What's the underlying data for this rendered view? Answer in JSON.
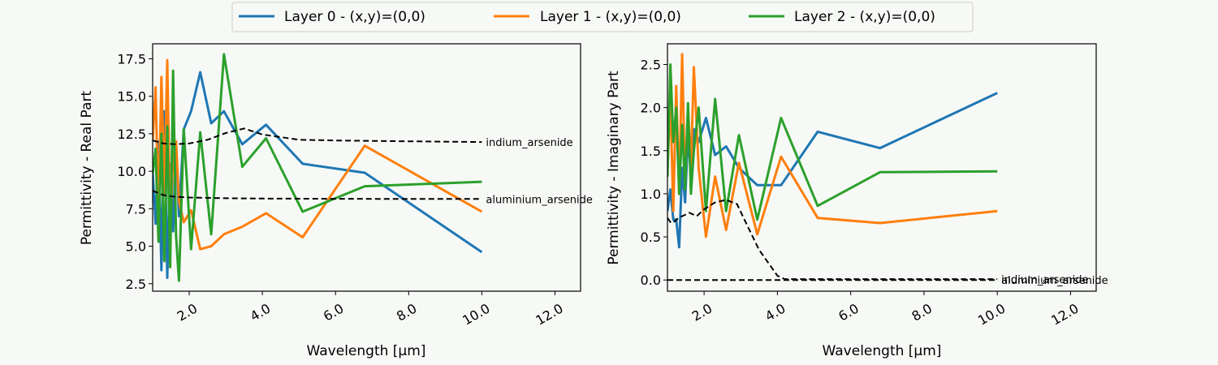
{
  "chart_data": [
    {
      "type": "line",
      "xlabel": "Wavelength [μm]",
      "ylabel": "Permittivity - Real Part",
      "xlim": [
        1.0,
        12.7
      ],
      "ylim": [
        2.0,
        18.5
      ],
      "xticks": [
        2,
        4,
        6,
        8,
        10,
        12
      ],
      "xtick_labels": [
        "2.0",
        "4.0",
        "6.0",
        "8.0",
        "10.0",
        "12.0"
      ],
      "yticks": [
        2.5,
        5.0,
        7.5,
        10.0,
        12.5,
        15.0,
        17.5
      ],
      "ytick_labels": [
        "2.5",
        "5.0",
        "7.5",
        "10.0",
        "12.5",
        "15.0",
        "17.5"
      ],
      "series": [
        {
          "name": "Layer 0 - (x,y)=(0,0)",
          "color": "#1f77b4",
          "x": [
            1.0,
            1.08,
            1.16,
            1.24,
            1.32,
            1.4,
            1.48,
            1.56,
            1.64,
            1.72,
            1.85,
            2.05,
            2.3,
            2.6,
            2.95,
            3.45,
            4.1,
            5.1,
            6.8,
            10.0
          ],
          "y": [
            10.0,
            6.5,
            12.0,
            3.4,
            14.0,
            2.9,
            10.5,
            6.0,
            12.0,
            7.0,
            12.8,
            14.0,
            16.6,
            13.2,
            14.0,
            11.8,
            13.1,
            10.5,
            9.9,
            4.6
          ]
        },
        {
          "name": "Layer 1 - (x,y)=(0,0)",
          "color": "#ff7f0e",
          "x": [
            1.0,
            1.08,
            1.16,
            1.24,
            1.32,
            1.4,
            1.48,
            1.56,
            1.64,
            1.72,
            1.85,
            2.05,
            2.3,
            2.6,
            2.95,
            3.45,
            4.1,
            5.1,
            6.8,
            10.0
          ],
          "y": [
            12.0,
            15.6,
            7.0,
            16.3,
            8.5,
            17.4,
            6.0,
            11.0,
            12.0,
            8.0,
            6.6,
            7.4,
            4.8,
            5.0,
            5.8,
            6.3,
            7.2,
            5.6,
            11.7,
            7.3
          ]
        },
        {
          "name": "Layer 2 - (x,y)=(0,0)",
          "color": "#2ca02c",
          "x": [
            1.0,
            1.08,
            1.16,
            1.24,
            1.32,
            1.4,
            1.48,
            1.56,
            1.64,
            1.72,
            1.85,
            2.05,
            2.3,
            2.6,
            2.95,
            3.45,
            4.1,
            5.1,
            6.8,
            10.0
          ],
          "y": [
            9.8,
            11.5,
            5.3,
            12.5,
            4.0,
            13.0,
            3.6,
            16.7,
            5.7,
            2.7,
            12.8,
            4.8,
            12.6,
            5.8,
            17.8,
            10.3,
            12.2,
            7.3,
            9.0,
            9.3
          ]
        }
      ],
      "reference_curves": [
        {
          "label": "indium_arsenide",
          "x": [
            1.0,
            1.3,
            1.6,
            2.0,
            2.5,
            3.0,
            3.5,
            4.0,
            5.0,
            6.0,
            8.0,
            10.0
          ],
          "y": [
            12.05,
            11.85,
            11.8,
            11.85,
            12.1,
            12.55,
            12.85,
            12.45,
            12.1,
            12.05,
            12.0,
            11.95
          ]
        },
        {
          "label": "aluminium_arsenide",
          "x": [
            1.0,
            1.3,
            1.6,
            2.0,
            3.0,
            4.0,
            6.0,
            8.0,
            10.0
          ],
          "y": [
            8.7,
            8.4,
            8.3,
            8.25,
            8.2,
            8.18,
            8.16,
            8.15,
            8.15
          ]
        }
      ]
    },
    {
      "type": "line",
      "xlabel": "Wavelength [μm]",
      "ylabel": "Permittivity - Imaginary Part",
      "xlim": [
        1.0,
        12.7
      ],
      "ylim": [
        -0.13,
        2.74
      ],
      "xticks": [
        2,
        4,
        6,
        8,
        10,
        12
      ],
      "xtick_labels": [
        "2.0",
        "4.0",
        "6.0",
        "8.0",
        "10.0",
        "12.0"
      ],
      "yticks": [
        0.0,
        0.5,
        1.0,
        1.5,
        2.0,
        2.5
      ],
      "ytick_labels": [
        "0.0",
        "0.5",
        "1.0",
        "1.5",
        "2.0",
        "2.5"
      ],
      "series": [
        {
          "name": "Layer 0 - (x,y)=(0,0)",
          "color": "#1f77b4",
          "x": [
            1.0,
            1.08,
            1.16,
            1.24,
            1.32,
            1.4,
            1.48,
            1.56,
            1.64,
            1.72,
            1.85,
            2.05,
            2.3,
            2.6,
            2.95,
            3.45,
            4.1,
            5.1,
            6.8,
            10.0
          ],
          "y": [
            0.8,
            1.05,
            0.7,
            0.7,
            0.38,
            1.3,
            0.9,
            1.7,
            1.2,
            1.75,
            1.6,
            1.88,
            1.45,
            1.55,
            1.3,
            1.1,
            1.1,
            1.72,
            1.53,
            2.17
          ]
        },
        {
          "name": "Layer 1 - (x,y)=(0,0)",
          "color": "#ff7f0e",
          "x": [
            1.0,
            1.08,
            1.16,
            1.24,
            1.32,
            1.4,
            1.48,
            1.56,
            1.64,
            1.72,
            1.85,
            2.05,
            2.3,
            2.6,
            2.95,
            3.45,
            4.1,
            5.1,
            6.8,
            10.0
          ],
          "y": [
            1.3,
            2.1,
            0.8,
            2.25,
            1.0,
            2.62,
            1.1,
            2.0,
            1.3,
            2.47,
            1.3,
            0.5,
            1.2,
            0.58,
            1.36,
            0.53,
            1.43,
            0.72,
            0.66,
            0.8
          ]
        },
        {
          "name": "Layer 2 - (x,y)=(0,0)",
          "color": "#2ca02c",
          "x": [
            1.0,
            1.08,
            1.16,
            1.24,
            1.32,
            1.4,
            1.48,
            1.56,
            1.64,
            1.72,
            1.85,
            2.05,
            2.3,
            2.6,
            2.95,
            3.45,
            4.1,
            5.1,
            6.8,
            10.0
          ],
          "y": [
            1.2,
            2.5,
            1.6,
            2.0,
            1.0,
            1.8,
            1.05,
            2.05,
            1.0,
            1.5,
            2.0,
            0.8,
            2.1,
            0.8,
            1.68,
            0.7,
            1.88,
            0.86,
            1.25,
            1.26
          ]
        }
      ],
      "reference_curves": [
        {
          "label": "indium_arsenide",
          "x": [
            1.0,
            1.1,
            1.2,
            1.3,
            1.6,
            1.8,
            2.0,
            2.3,
            2.6,
            2.9,
            3.1,
            3.5,
            4.0,
            4.2,
            6.0,
            8.0,
            10.0
          ],
          "y": [
            0.72,
            0.66,
            0.68,
            0.72,
            0.78,
            0.74,
            0.82,
            0.9,
            0.93,
            0.88,
            0.7,
            0.35,
            0.05,
            0.01,
            0.01,
            0.01,
            0.01
          ]
        },
        {
          "label": "aluminium_arsenide",
          "x": [
            1.0,
            2.0,
            4.0,
            6.0,
            8.0,
            10.0
          ],
          "y": [
            0.0,
            0.0,
            0.0,
            0.0,
            0.0,
            0.0
          ]
        }
      ]
    }
  ],
  "legend": {
    "position": "top-center",
    "entries": [
      {
        "label": "Layer 0 - (x,y)=(0,0)",
        "color": "#1f77b4"
      },
      {
        "label": "Layer 1 - (x,y)=(0,0)",
        "color": "#ff7f0e"
      },
      {
        "label": "Layer 2 - (x,y)=(0,0)",
        "color": "#2ca02c"
      }
    ]
  }
}
